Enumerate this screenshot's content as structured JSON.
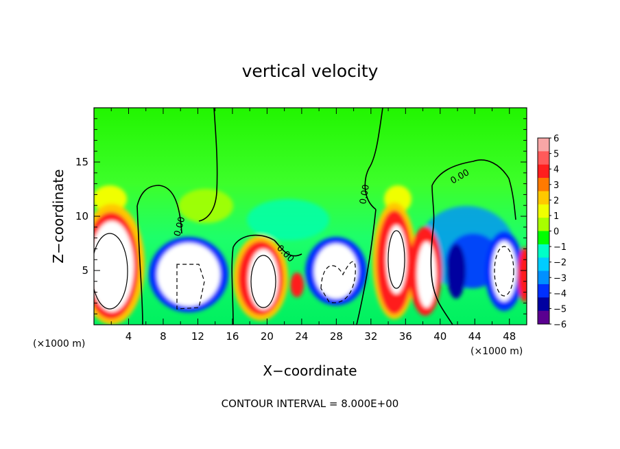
{
  "chart_data": {
    "type": "heatmap",
    "title": "vertical velocity",
    "xlabel": "X−coordinate",
    "ylabel": "Z−coordinate",
    "x_unit_left": "(×1000 m)",
    "x_unit_right": "(×1000 m)",
    "footer": "CONTOUR INTERVAL = 8.000E+00",
    "contour_label": "0.00",
    "xlim": [
      0,
      50
    ],
    "ylim": [
      0,
      20
    ],
    "x_ticks": [
      "4",
      "8",
      "12",
      "16",
      "20",
      "24",
      "28",
      "32",
      "36",
      "40",
      "44",
      "48"
    ],
    "y_ticks": [
      "5",
      "10",
      "15"
    ],
    "colorbar": {
      "labels": [
        "6",
        "5",
        "4",
        "3",
        "2",
        "1",
        "0",
        "−1",
        "−2",
        "−3",
        "−4",
        "−5",
        "−6"
      ],
      "colors": [
        "#f8a6a6",
        "#ff5a5a",
        "#ff1e1e",
        "#ff7a00",
        "#ffc800",
        "#f0ff00",
        "#a8ff00",
        "#00ff00",
        "#00ffc8",
        "#00ccff",
        "#0090ff",
        "#0030ff",
        "#0000a0",
        "#5a0090"
      ]
    },
    "updrafts": [
      {
        "x": 2.2,
        "z": 6.8
      },
      {
        "x": 11.0,
        "z": 5.5
      },
      {
        "x": 19.5,
        "z": 5.0
      },
      {
        "x": 27.0,
        "z": 5.2
      },
      {
        "x": 35.0,
        "z": 6.8
      },
      {
        "x": 38.8,
        "z": 5.5
      },
      {
        "x": 46.5,
        "z": 5.2
      }
    ]
  }
}
